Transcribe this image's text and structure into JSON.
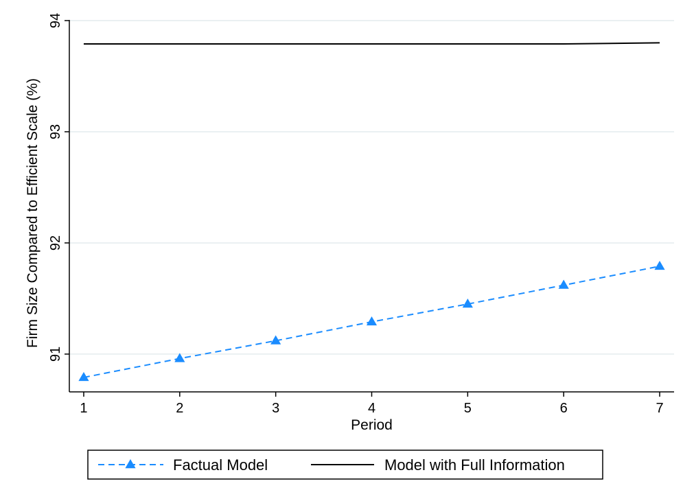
{
  "chart_data": {
    "type": "line",
    "title": "",
    "xlabel": "Period",
    "ylabel": "Firm Size Compared to Efficient Scale (%)",
    "x": [
      1,
      2,
      3,
      4,
      5,
      6,
      7
    ],
    "x_ticks": [
      1,
      2,
      3,
      4,
      5,
      6,
      7
    ],
    "y_ticks": [
      91,
      92,
      93,
      94
    ],
    "xlim": [
      0.85,
      7.15
    ],
    "ylim": [
      90.66,
      94.0
    ],
    "grid": true,
    "legend_position": "bottom",
    "series": [
      {
        "name": "Factual Model",
        "values": [
          90.79,
          90.96,
          91.12,
          91.29,
          91.45,
          91.62,
          91.79
        ],
        "color": "#1a8cff",
        "style": "dashed",
        "marker": "triangle"
      },
      {
        "name": "Model with Full Information",
        "values": [
          93.79,
          93.79,
          93.79,
          93.79,
          93.79,
          93.79,
          93.8
        ],
        "color": "#000000",
        "style": "solid",
        "marker": "none"
      }
    ]
  },
  "colors": {
    "grid": "#e4ecee",
    "axis": "#000000",
    "background": "#ffffff"
  }
}
